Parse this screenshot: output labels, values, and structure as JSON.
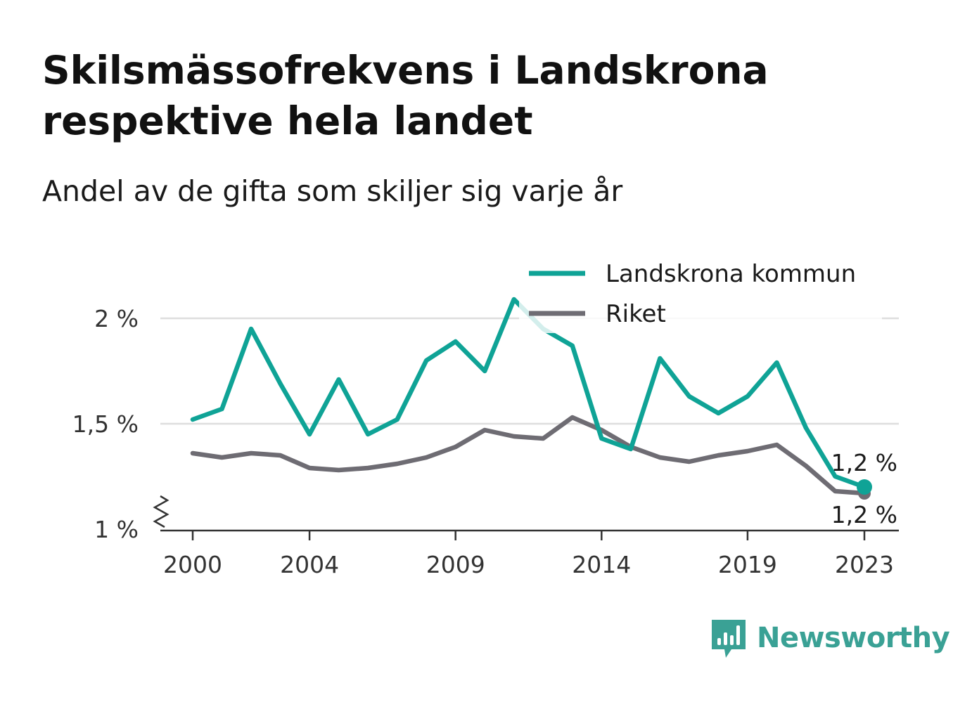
{
  "title": "Skilsmässofrekvens i Landskrona respektive hela landet",
  "subtitle": "Andel av de gifta som skiljer sig varje år",
  "brand": {
    "name": "Newsworthy",
    "icon": "bar-chart-speech-bubble-icon",
    "color": "#3aa195"
  },
  "chart_data": {
    "type": "line",
    "x_tick_labels": [
      "2000",
      "2004",
      "2009",
      "2014",
      "2019",
      "2023"
    ],
    "y_ticks": [
      1,
      1.5,
      2
    ],
    "y_tick_labels": [
      "1 %",
      "1,5 %",
      "2 %"
    ],
    "ylim": [
      1,
      2.1
    ],
    "xlim": [
      2000,
      2023
    ],
    "y_axis_break": true,
    "grid": true,
    "legend_position": "top-right",
    "series": [
      {
        "name": "Landskrona kommun",
        "color": "#0fa396",
        "x": [
          2000,
          2001,
          2002,
          2003,
          2004,
          2005,
          2006,
          2007,
          2008,
          2009,
          2010,
          2011,
          2012,
          2013,
          2014,
          2015,
          2016,
          2017,
          2018,
          2019,
          2020,
          2021,
          2022,
          2023
        ],
        "values": [
          1.52,
          1.57,
          1.95,
          1.69,
          1.45,
          1.71,
          1.45,
          1.52,
          1.8,
          1.89,
          1.75,
          2.09,
          1.95,
          1.87,
          1.43,
          1.38,
          1.81,
          1.63,
          1.55,
          1.63,
          1.79,
          1.48,
          1.25,
          1.2
        ],
        "end_label": "1,2 %"
      },
      {
        "name": "Riket",
        "color": "#6e6c73",
        "x": [
          2000,
          2001,
          2002,
          2003,
          2004,
          2005,
          2006,
          2007,
          2008,
          2009,
          2010,
          2011,
          2012,
          2013,
          2014,
          2015,
          2016,
          2017,
          2018,
          2019,
          2020,
          2021,
          2022,
          2023
        ],
        "values": [
          1.36,
          1.34,
          1.36,
          1.35,
          1.29,
          1.28,
          1.29,
          1.31,
          1.34,
          1.39,
          1.47,
          1.44,
          1.43,
          1.53,
          1.47,
          1.39,
          1.34,
          1.32,
          1.35,
          1.37,
          1.4,
          1.3,
          1.18,
          1.17
        ],
        "end_label": "1,2 %"
      }
    ]
  }
}
